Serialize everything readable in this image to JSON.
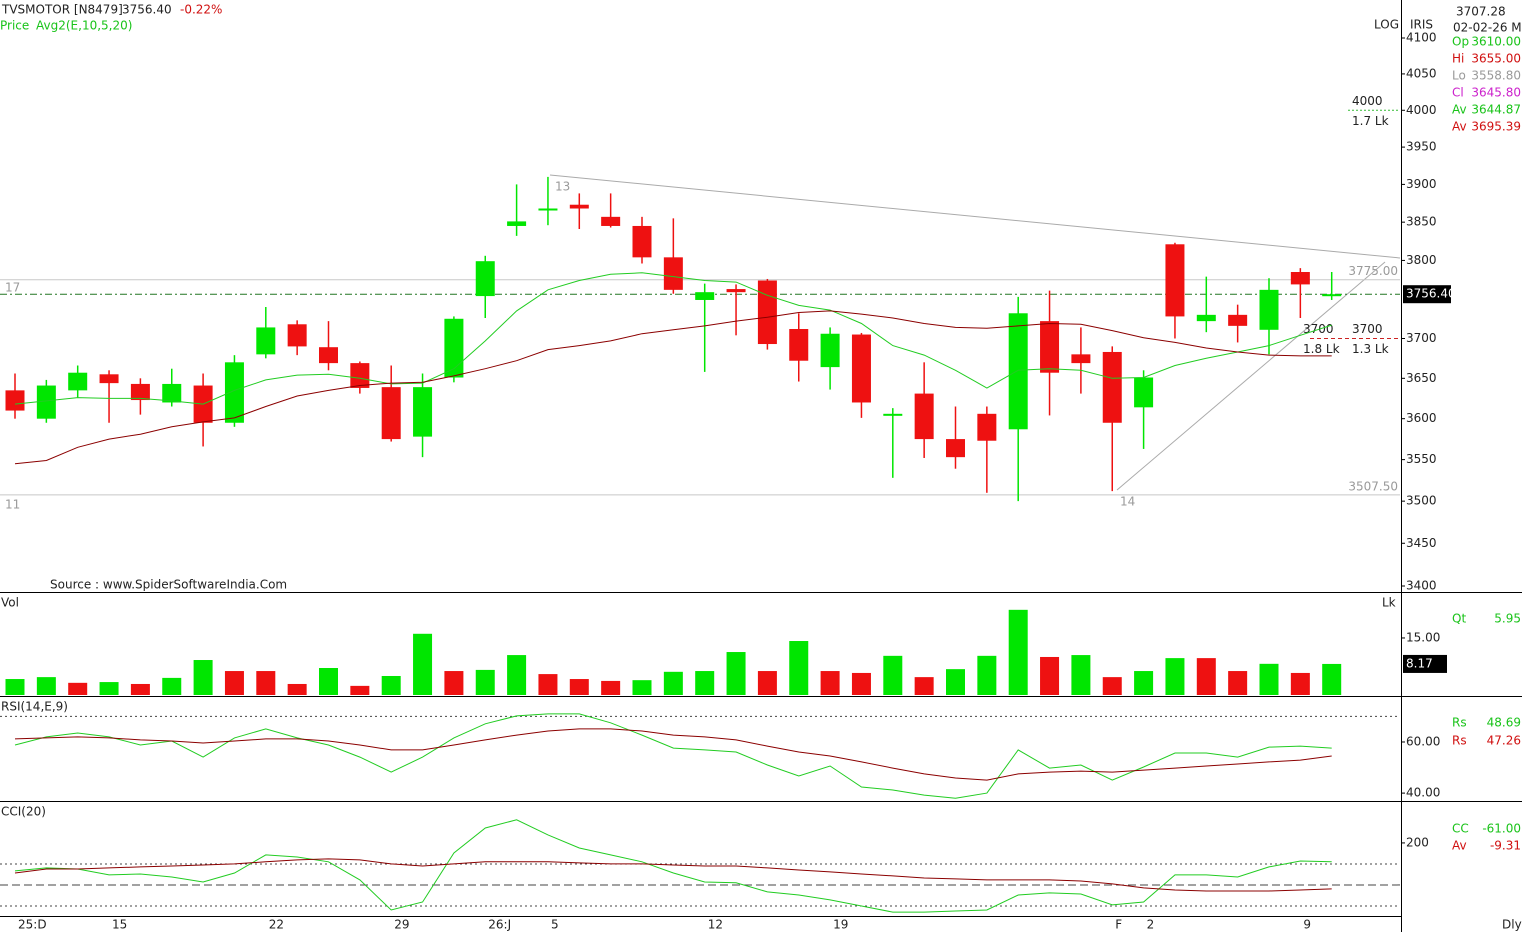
{
  "chart_data": [
    {
      "type": "candlestick",
      "title": "TVSMOTOR [N8479]",
      "close_label": "3756.40",
      "change": "-0.22%",
      "price_label": "Price",
      "avg_label": "Avg2(E,10,5,20)",
      "source": "Source : www.SpiderSoftwareIndia.Com",
      "scale_label": "LOG",
      "style_label": "IRIS",
      "log": true,
      "up_color": "#00e600",
      "down_color": "#ee1111",
      "ylim": [
        3400,
        4100
      ],
      "yticks": [
        3400,
        3450,
        3500,
        3550,
        3600,
        3650,
        3700,
        3800,
        3850,
        3900,
        3950,
        4000,
        4050,
        4100
      ],
      "open": [
        3635,
        3600,
        3635,
        3655,
        3643,
        3620,
        3641,
        3595,
        3680,
        3718,
        3689,
        3669,
        3639,
        3578,
        3651,
        3754,
        3845,
        3866,
        3873,
        3857,
        3845,
        3804,
        3749,
        3763,
        3774,
        3712,
        3664,
        3705,
        3604,
        3631,
        3575,
        3606,
        3587,
        3722,
        3680,
        3683,
        3614,
        3821,
        3722,
        3730,
        3711,
        3785,
        3755
      ],
      "high": [
        3656,
        3648,
        3666,
        3660,
        3650,
        3662,
        3656,
        3679,
        3740,
        3723,
        3722,
        3671,
        3666,
        3656,
        3728,
        3806,
        3900,
        3910,
        3888,
        3888,
        3857,
        3855,
        3770,
        3769,
        3776,
        3732,
        3714,
        3707,
        3613,
        3670,
        3615,
        3615,
        3753,
        3761,
        3714,
        3690,
        3660,
        3823,
        3779,
        3743,
        3777,
        3790,
        3785
      ],
      "low": [
        3600,
        3595,
        3626,
        3595,
        3605,
        3615,
        3566,
        3590,
        3675,
        3679,
        3660,
        3631,
        3572,
        3553,
        3645,
        3726,
        3832,
        3846,
        3841,
        3843,
        3796,
        3757,
        3658,
        3704,
        3686,
        3646,
        3636,
        3601,
        3528,
        3552,
        3539,
        3510,
        3500,
        3604,
        3631,
        3512,
        3563,
        3700,
        3708,
        3695,
        3680,
        3726,
        3749
      ],
      "close": [
        3610,
        3641,
        3657,
        3644,
        3623,
        3643,
        3595,
        3670,
        3714,
        3690,
        3669,
        3638,
        3575,
        3639,
        3725,
        3799,
        3851,
        3868,
        3868,
        3845,
        3804,
        3762,
        3759,
        3759,
        3693,
        3672,
        3706,
        3620,
        3606,
        3575,
        3553,
        3573,
        3732,
        3657,
        3669,
        3595,
        3651,
        3728,
        3730,
        3716,
        3762,
        3769,
        3756.4
      ],
      "series": [
        {
          "color": "#22cc22",
          "values": [
            3618,
            3622,
            3626,
            3625,
            3625,
            3622,
            3618,
            3635,
            3648,
            3654,
            3655,
            3650,
            3643,
            3644,
            3662,
            3697,
            3735,
            3762,
            3774,
            3782,
            3784,
            3779,
            3774,
            3772,
            3755,
            3742,
            3736,
            3719,
            3691,
            3679,
            3660,
            3638,
            3660,
            3662,
            3660,
            3650,
            3651,
            3666,
            3675,
            3683,
            3691,
            3704,
            3717
          ]
        },
        {
          "color": "#8b0000",
          "values": [
            3545,
            3549,
            3565,
            3575,
            3581,
            3590,
            3596,
            3601,
            3615,
            3628,
            3635,
            3641,
            3644,
            3645,
            3653,
            3662,
            3672,
            3686,
            3691,
            3697,
            3706,
            3711,
            3716,
            3722,
            3727,
            3733,
            3735,
            3731,
            3726,
            3719,
            3714,
            3713,
            3716,
            3719,
            3718,
            3710,
            3701,
            3695,
            3688,
            3683,
            3679,
            3678,
            3678
          ]
        }
      ],
      "levels": [
        {
          "value": 3775,
          "label": "3775.00"
        },
        {
          "value": 3507.5,
          "label": "3507.50"
        }
      ],
      "targets": [
        {
          "value": 4000,
          "label": "4000",
          "volume": "1.7 Lk",
          "color": "#33bb33"
        },
        {
          "value": 3700,
          "label": "3700",
          "volume": "1.8 Lk",
          "color": "#33bb33"
        },
        {
          "value": 3700,
          "label": "3700",
          "volume": "1.3 Lk",
          "color": "#cc2222"
        }
      ],
      "annotations": {
        "left_high": "17",
        "left_low": "11",
        "swing_high": "13",
        "swing_low": "14"
      }
    },
    {
      "type": "bar",
      "title": "Vol",
      "unit": "Lk",
      "ylim": [
        0,
        26.3
      ],
      "yticks": [
        {
          "value": 15,
          "label": "15.00"
        }
      ],
      "values": [
        4.2,
        4.7,
        3.2,
        3.4,
        2.9,
        4.5,
        9.2,
        6.3,
        6.3,
        2.9,
        7.1,
        2.4,
        5.0,
        16.1,
        6.3,
        6.6,
        10.5,
        5.5,
        4.2,
        3.7,
        3.9,
        6.1,
        6.3,
        11.3,
        6.3,
        14.2,
        6.3,
        5.8,
        10.3,
        4.7,
        6.8,
        10.3,
        22.4,
        10.0,
        10.5,
        4.7,
        6.3,
        9.7,
        9.7,
        6.3,
        8.2,
        5.8,
        8.17
      ],
      "colors": [
        "#00e600",
        "#00e600",
        "#ee1111",
        "#00e600",
        "#ee1111",
        "#00e600",
        "#00e600",
        "#ee1111",
        "#ee1111",
        "#ee1111",
        "#00e600",
        "#ee1111",
        "#00e600",
        "#00e600",
        "#ee1111",
        "#00e600",
        "#00e600",
        "#ee1111",
        "#ee1111",
        "#ee1111",
        "#00e600",
        "#00e600",
        "#00e600",
        "#00e600",
        "#ee1111",
        "#00e600",
        "#ee1111",
        "#ee1111",
        "#00e600",
        "#ee1111",
        "#00e600",
        "#00e600",
        "#00e600",
        "#ee1111",
        "#00e600",
        "#ee1111",
        "#00e600",
        "#00e600",
        "#ee1111",
        "#ee1111",
        "#00e600",
        "#ee1111",
        "#00e600"
      ],
      "readout": [
        [
          "Qt",
          "5.95"
        ]
      ]
    },
    {
      "type": "line",
      "title": "RSI(14,E,9)",
      "ylim": [
        37.3,
        77.6
      ],
      "yticks": [
        {
          "value": 60,
          "label": "60.00"
        },
        {
          "value": 40,
          "label": "40.00"
        }
      ],
      "ref_lines": [
        70
      ],
      "series": [
        {
          "color": "#22cc22",
          "values": [
            58.8,
            62.0,
            63.5,
            62.0,
            58.8,
            60.4,
            54.1,
            61.6,
            65.1,
            61.6,
            58.8,
            54.1,
            48.2,
            54.1,
            61.6,
            67.1,
            70.2,
            71.0,
            71.0,
            67.5,
            62.7,
            57.6,
            56.9,
            56.1,
            51.0,
            46.7,
            50.6,
            42.4,
            41.2,
            39.2,
            38.0,
            40.0,
            56.9,
            49.8,
            51.0,
            45.1,
            50.2,
            55.7,
            55.7,
            54.1,
            58.0,
            58.4,
            57.6
          ]
        },
        {
          "color": "#8b0000",
          "values": [
            61.2,
            61.6,
            62.0,
            61.6,
            60.8,
            60.4,
            59.6,
            60.4,
            61.2,
            61.2,
            60.4,
            58.8,
            56.9,
            56.9,
            58.8,
            60.8,
            62.7,
            64.3,
            65.1,
            65.1,
            64.3,
            62.7,
            62.0,
            60.8,
            58.4,
            56.1,
            54.5,
            52.2,
            49.8,
            47.5,
            45.9,
            45.1,
            47.5,
            48.2,
            48.6,
            48.2,
            49.0,
            49.8,
            50.6,
            51.4,
            52.2,
            52.9,
            54.5
          ]
        }
      ],
      "readout": [
        [
          "Rs",
          "48.69"
        ],
        [
          "Rs",
          "47.26"
        ]
      ]
    },
    {
      "type": "line",
      "title": "CCI(20)",
      "ylim": [
        -143,
        390
      ],
      "yticks": [
        200
      ],
      "ref_lines": [
        100,
        0,
        -100
      ],
      "categories": [
        "25:D",
        null,
        null,
        "15",
        null,
        null,
        null,
        null,
        "22",
        null,
        null,
        null,
        "29",
        null,
        null,
        "26:J",
        null,
        "5",
        null,
        null,
        null,
        null,
        "12",
        null,
        null,
        null,
        "19",
        null,
        null,
        null,
        null,
        null,
        null,
        null,
        null,
        "F",
        "2",
        null,
        null,
        null,
        null,
        "9",
        null
      ],
      "period": "Dly",
      "series": [
        {
          "color": "#22cc22",
          "values": [
            67,
            81,
            76,
            48,
            52,
            38,
            14,
            57,
            143,
            133,
            110,
            24,
            -119,
            -81,
            152,
            271,
            310,
            238,
            176,
            143,
            110,
            57,
            14,
            10,
            -33,
            -48,
            -71,
            -100,
            -129,
            -129,
            -124,
            -119,
            -48,
            -38,
            -43,
            -95,
            -81,
            48,
            48,
            38,
            86,
            114,
            110
          ]
        },
        {
          "color": "#8b0000",
          "values": [
            57,
            76,
            76,
            81,
            86,
            90,
            95,
            100,
            110,
            119,
            124,
            119,
            100,
            90,
            100,
            110,
            110,
            110,
            105,
            100,
            100,
            95,
            90,
            90,
            81,
            71,
            62,
            52,
            43,
            33,
            29,
            24,
            24,
            24,
            19,
            5,
            -14,
            -24,
            -29,
            -29,
            -29,
            -24,
            -19
          ]
        }
      ],
      "readout": [
        [
          "CC",
          "-61.00"
        ],
        [
          "Av",
          "-9.31"
        ]
      ]
    }
  ],
  "info_panel": {
    "value": "3707.28",
    "date": "02-02-26 Mo",
    "rows": [
      [
        "Op",
        "3610.00"
      ],
      [
        "Hi",
        "3655.00"
      ],
      [
        "Lo",
        "3558.80"
      ],
      [
        "Cl",
        "3645.80"
      ],
      [
        "Av",
        "3644.87"
      ],
      [
        "Av",
        "3695.39"
      ]
    ]
  }
}
